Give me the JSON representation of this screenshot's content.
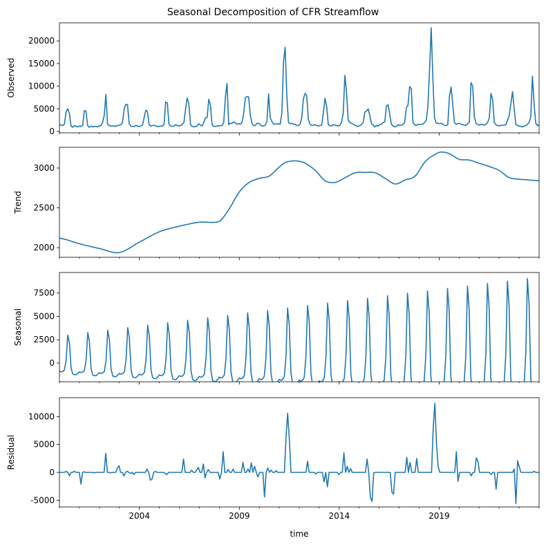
{
  "title": "Seasonal Decomposition of CFR Streamflow",
  "line_color": "#1f77b4",
  "chart_data": {
    "type": "line",
    "x_start": 2000.0,
    "x_end": 2024.0,
    "xlabel": "time",
    "xtick_values": [
      2004,
      2009,
      2014,
      2019
    ],
    "xtick_labels": [
      "2004",
      "2009",
      "2014",
      "2019"
    ],
    "panels": [
      {
        "name": "observed",
        "ylabel": "Observed",
        "ylim": [
          -300,
          24000
        ],
        "yticks": [
          0,
          5000,
          10000,
          15000,
          20000
        ],
        "ytick_labels": [
          "0",
          "5000",
          "10000",
          "15000",
          "20000"
        ],
        "values": [
          1500,
          1400,
          1300,
          1600,
          4300,
          5000,
          4000,
          1200,
          900,
          1300,
          1100,
          1000,
          1200,
          1100,
          1300,
          4600,
          4500,
          1300,
          900,
          1200,
          1000,
          1100,
          1100,
          1000,
          1200,
          1300,
          2000,
          3500,
          8200,
          1600,
          1300,
          1200,
          1200,
          1200,
          1100,
          1300,
          1400,
          1500,
          2000,
          5000,
          6000,
          5900,
          1700,
          1200,
          1100,
          1100,
          1300,
          1200,
          1100,
          1200,
          1400,
          3000,
          4700,
          4400,
          1500,
          1200,
          1300,
          1400,
          1200,
          1100,
          1100,
          1200,
          1200,
          1500,
          6500,
          6300,
          1600,
          1200,
          1100,
          1200,
          1500,
          1300,
          1200,
          1300,
          1500,
          2000,
          5000,
          7400,
          6000,
          1500,
          1100,
          1000,
          1100,
          1200,
          1700,
          1400,
          1200,
          2000,
          3000,
          3100,
          7100,
          5800,
          1500,
          1100,
          1100,
          1200,
          1200,
          1300,
          1300,
          2000,
          7500,
          10600,
          1500,
          1800,
          1800,
          2100,
          1900,
          1600,
          1700,
          1600,
          2000,
          4000,
          7500,
          7700,
          7600,
          3500,
          1800,
          1300,
          1300,
          1800,
          1800,
          1500,
          1200,
          1200,
          1400,
          2200,
          8300,
          3000,
          2200,
          1600,
          1700,
          1600,
          1700,
          1600,
          4000,
          15400,
          18600,
          8000,
          2000,
          1700,
          1800,
          1600,
          1600,
          1300,
          1300,
          1600,
          3000,
          7200,
          8400,
          7900,
          2600,
          1600,
          1300,
          1400,
          1500,
          1300,
          1200,
          1300,
          1400,
          4000,
          7300,
          5600,
          1500,
          1300,
          1200,
          1500,
          1400,
          1300,
          1200,
          1400,
          2000,
          4000,
          12400,
          8600,
          2500,
          2000,
          1800,
          1600,
          1400,
          1200,
          1100,
          1300,
          1500,
          2000,
          4300,
          4500,
          5000,
          3500,
          1700,
          1400,
          1000,
          1300,
          1200,
          1500,
          1600,
          2000,
          2100,
          5600,
          5900,
          3800,
          1600,
          1200,
          1000,
          1100,
          1500,
          1300,
          1400,
          1500,
          2000,
          5200,
          5800,
          9900,
          9500,
          2000,
          1500,
          1300,
          1600,
          1500,
          1600,
          1600,
          2000,
          2500,
          5500,
          13500,
          22900,
          11800,
          3000,
          1900,
          1800,
          1700,
          1800,
          1600,
          1300,
          1300,
          1500,
          7800,
          9800,
          6000,
          2000,
          1600,
          1700,
          1800,
          1600,
          1500,
          1400,
          1300,
          1700,
          2000,
          10800,
          10000,
          3300,
          1800,
          1500,
          1400,
          1600,
          1500,
          1400,
          1600,
          2000,
          3000,
          8400,
          7000,
          2000,
          1500,
          1300,
          1200,
          1400,
          1300,
          1400,
          1500,
          2500,
          3500,
          6200,
          8800,
          5000,
          1500,
          1300,
          1200,
          1100,
          1000,
          1200,
          1300,
          1600,
          2000,
          3300,
          12200,
          6000,
          1800,
          1300,
          1500
        ]
      },
      {
        "name": "trend",
        "ylabel": "Trend",
        "ylim": [
          1880,
          3260
        ],
        "yticks": [
          2000,
          2500,
          3000
        ],
        "ytick_labels": [
          "2000",
          "2500",
          "3000"
        ],
        "knots_x": [
          2000.0,
          2001.0,
          2002.0,
          2003.0,
          2004.0,
          2005.0,
          2006.0,
          2007.0,
          2008.0,
          2008.5,
          2009.0,
          2009.5,
          2010.0,
          2010.5,
          2011.0,
          2011.3,
          2011.8,
          2012.3,
          2012.8,
          2013.3,
          2013.8,
          2014.3,
          2014.8,
          2015.3,
          2015.8,
          2016.3,
          2016.8,
          2017.3,
          2017.8,
          2018.3,
          2018.8,
          2019.1,
          2019.5,
          2020.0,
          2020.5,
          2021.0,
          2021.5,
          2022.0,
          2022.5,
          2023.0,
          2023.5,
          2024.0
        ],
        "knots_y": [
          2120,
          2050,
          1990,
          1940,
          2070,
          2200,
          2270,
          2320,
          2330,
          2490,
          2700,
          2820,
          2870,
          2900,
          3010,
          3070,
          3090,
          3060,
          2970,
          2840,
          2820,
          2880,
          2940,
          2945,
          2940,
          2870,
          2800,
          2850,
          2900,
          3080,
          3170,
          3200,
          3180,
          3110,
          3100,
          3060,
          3020,
          2970,
          2880,
          2860,
          2850,
          2840
        ]
      },
      {
        "name": "seasonal",
        "ylabel": "Seasonal",
        "ylim": [
          -2000,
          9700
        ],
        "yticks": [
          0,
          2500,
          5000,
          7500
        ],
        "ytick_labels": [
          "0",
          "2500",
          "5000",
          "7500"
        ],
        "pattern": [
          -0.3,
          -0.32,
          -0.3,
          -0.25,
          0.1,
          1.0,
          0.7,
          -0.18,
          -0.38,
          -0.4,
          -0.4,
          -0.35
        ],
        "amp_start": 2900,
        "amp_end": 9200
      },
      {
        "name": "residual",
        "ylabel": "Residual",
        "ylim": [
          -6200,
          13400
        ],
        "yticks": [
          -5000,
          0,
          5000,
          10000
        ],
        "ytick_labels": [
          "-5000",
          "0",
          "5000",
          "10000"
        ],
        "values": [
          0,
          0,
          0,
          0,
          200,
          0,
          -600,
          0,
          0,
          200,
          0,
          0,
          0,
          -2100,
          0,
          100,
          0,
          0,
          0,
          0,
          0,
          -100,
          0,
          0,
          0,
          0,
          0,
          0,
          3400,
          0,
          0,
          -100,
          0,
          0,
          0,
          800,
          1200,
          0,
          0,
          -600,
          0,
          200,
          0,
          -200,
          0,
          -400,
          0,
          0,
          0,
          0,
          0,
          0,
          0,
          600,
          0,
          -1400,
          -1200,
          0,
          200,
          0,
          0,
          0,
          0,
          0,
          -200,
          -400,
          0,
          0,
          0,
          0,
          0,
          0,
          0,
          0,
          0,
          2400,
          0,
          0,
          0,
          0,
          400,
          0,
          0,
          400,
          900,
          0,
          0,
          1500,
          -1000,
          0,
          500,
          0,
          0,
          0,
          0,
          0,
          0,
          -1200,
          0,
          3700,
          0,
          0,
          500,
          0,
          0,
          600,
          0,
          0,
          0,
          0,
          0,
          1800,
          0,
          0,
          600,
          0,
          1700,
          0,
          1100,
          0,
          -800,
          0,
          0,
          0,
          -4400,
          0,
          800,
          0,
          400,
          0,
          0,
          300,
          0,
          0,
          0,
          0,
          0,
          6400,
          10600,
          6000,
          0,
          0,
          0,
          0,
          0,
          0,
          0,
          0,
          0,
          0,
          2000,
          0,
          0,
          0,
          0,
          -300,
          0,
          0,
          0,
          0,
          -1700,
          0,
          -2600,
          0,
          0,
          0,
          0,
          0,
          0,
          -400,
          0,
          0,
          3500,
          0,
          1100,
          0,
          700,
          0,
          0,
          0,
          0,
          0,
          0,
          0,
          0,
          0,
          2400,
          0,
          -4500,
          -5200,
          -100,
          0,
          0,
          0,
          0,
          0,
          0,
          0,
          0,
          0,
          0,
          -3500,
          -3900,
          0,
          0,
          0,
          0,
          0,
          0,
          0,
          2700,
          0,
          1800,
          0,
          0,
          0,
          2500,
          0,
          0,
          0,
          0,
          0,
          0,
          0,
          0,
          0,
          8000,
          12400,
          5000,
          1000,
          0,
          0,
          0,
          0,
          0,
          0,
          0,
          0,
          0,
          0,
          3700,
          -1600,
          0,
          0,
          0,
          0,
          0,
          0,
          0,
          -600,
          0,
          0,
          2600,
          2000,
          0,
          0,
          0,
          0,
          0,
          0,
          0,
          -400,
          0,
          0,
          -3000,
          0,
          0,
          0,
          0,
          0,
          0,
          0,
          0,
          0,
          0,
          600,
          -5600,
          2100,
          1000,
          0,
          0,
          0,
          0,
          0,
          0,
          0,
          0,
          200,
          0,
          0,
          0
        ]
      }
    ]
  }
}
